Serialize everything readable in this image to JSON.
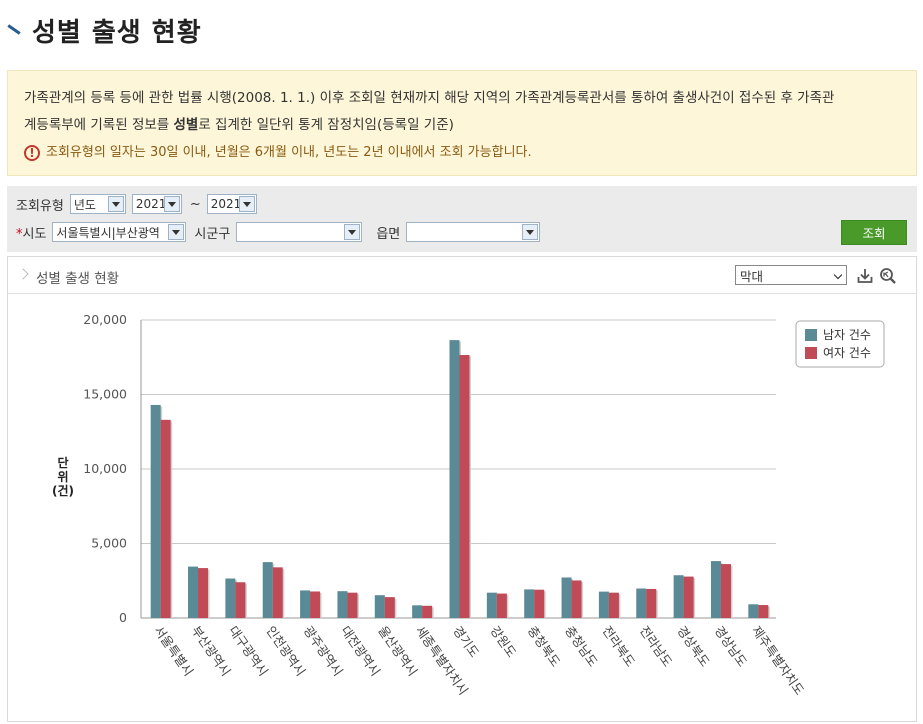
{
  "page": {
    "title": "성별 출생 현황"
  },
  "notice": {
    "text1": "가족관계의 등록 등에 관한 법률 시행(2008. 1. 1.) 이후 조회일 현재까지 해당 지역의 가족관계등록관서를 통하여 출생사건이 접수된 후 가족관",
    "text2a": "계등록부에 기록된 정보를 ",
    "text2b": "성별",
    "text2c": "로 집계한 일단위 통계 잠정치임(등록일 기준)",
    "warning": "조회유형의 일자는 30일 이내, 년월은 6개월 이내, 년도는 2년 이내에서 조회 가능합니다."
  },
  "filters": {
    "type_label": "조회유형",
    "type_value": "년도",
    "from_value": "2021",
    "tilde": "~",
    "to_value": "2021",
    "required_mark": "*",
    "sido_label": "시도",
    "sido_value": "서울특별시|부산광역",
    "sigungu_label": "시군구",
    "sigungu_value": "",
    "eupmyeon_label": "읍면",
    "eupmyeon_value": "",
    "search_button": "조회"
  },
  "chart_panel": {
    "title": "성별 출생 현황",
    "chart_type_select": "막대",
    "download_icon": "download-icon",
    "zoom_icon": "zoom-icon"
  },
  "chart_data": {
    "type": "bar",
    "categories": [
      "서울특별시",
      "부산광역시",
      "대구광역시",
      "인천광역시",
      "광주광역시",
      "대전광역시",
      "울산광역시",
      "세종특별자치시",
      "경기도",
      "강원도",
      "충청북도",
      "충청남도",
      "전라북도",
      "전라남도",
      "경상북도",
      "경상남도",
      "제주특별자치도"
    ],
    "series": [
      {
        "name": "남자 건수",
        "color": "#5a8a96",
        "values": [
          14300,
          3450,
          2650,
          3750,
          1850,
          1800,
          1530,
          850,
          18650,
          1700,
          1920,
          2720,
          1770,
          1980,
          2870,
          3820,
          920
        ]
      },
      {
        "name": "여자 건수",
        "color": "#c04a55",
        "values": [
          13300,
          3350,
          2400,
          3400,
          1780,
          1700,
          1400,
          820,
          17650,
          1640,
          1900,
          2520,
          1700,
          1950,
          2780,
          3620,
          870
        ]
      }
    ],
    "ylabel": "단위(건)",
    "ylabel_lines": [
      "단",
      "위",
      "(건)"
    ],
    "ylim": [
      0,
      20000
    ],
    "yticks": [
      "0",
      "5,000",
      "10,000",
      "15,000",
      "20,000"
    ],
    "ytick_values": [
      0,
      5000,
      10000,
      15000,
      20000
    ],
    "grid": true,
    "legend_position": "top-right"
  }
}
